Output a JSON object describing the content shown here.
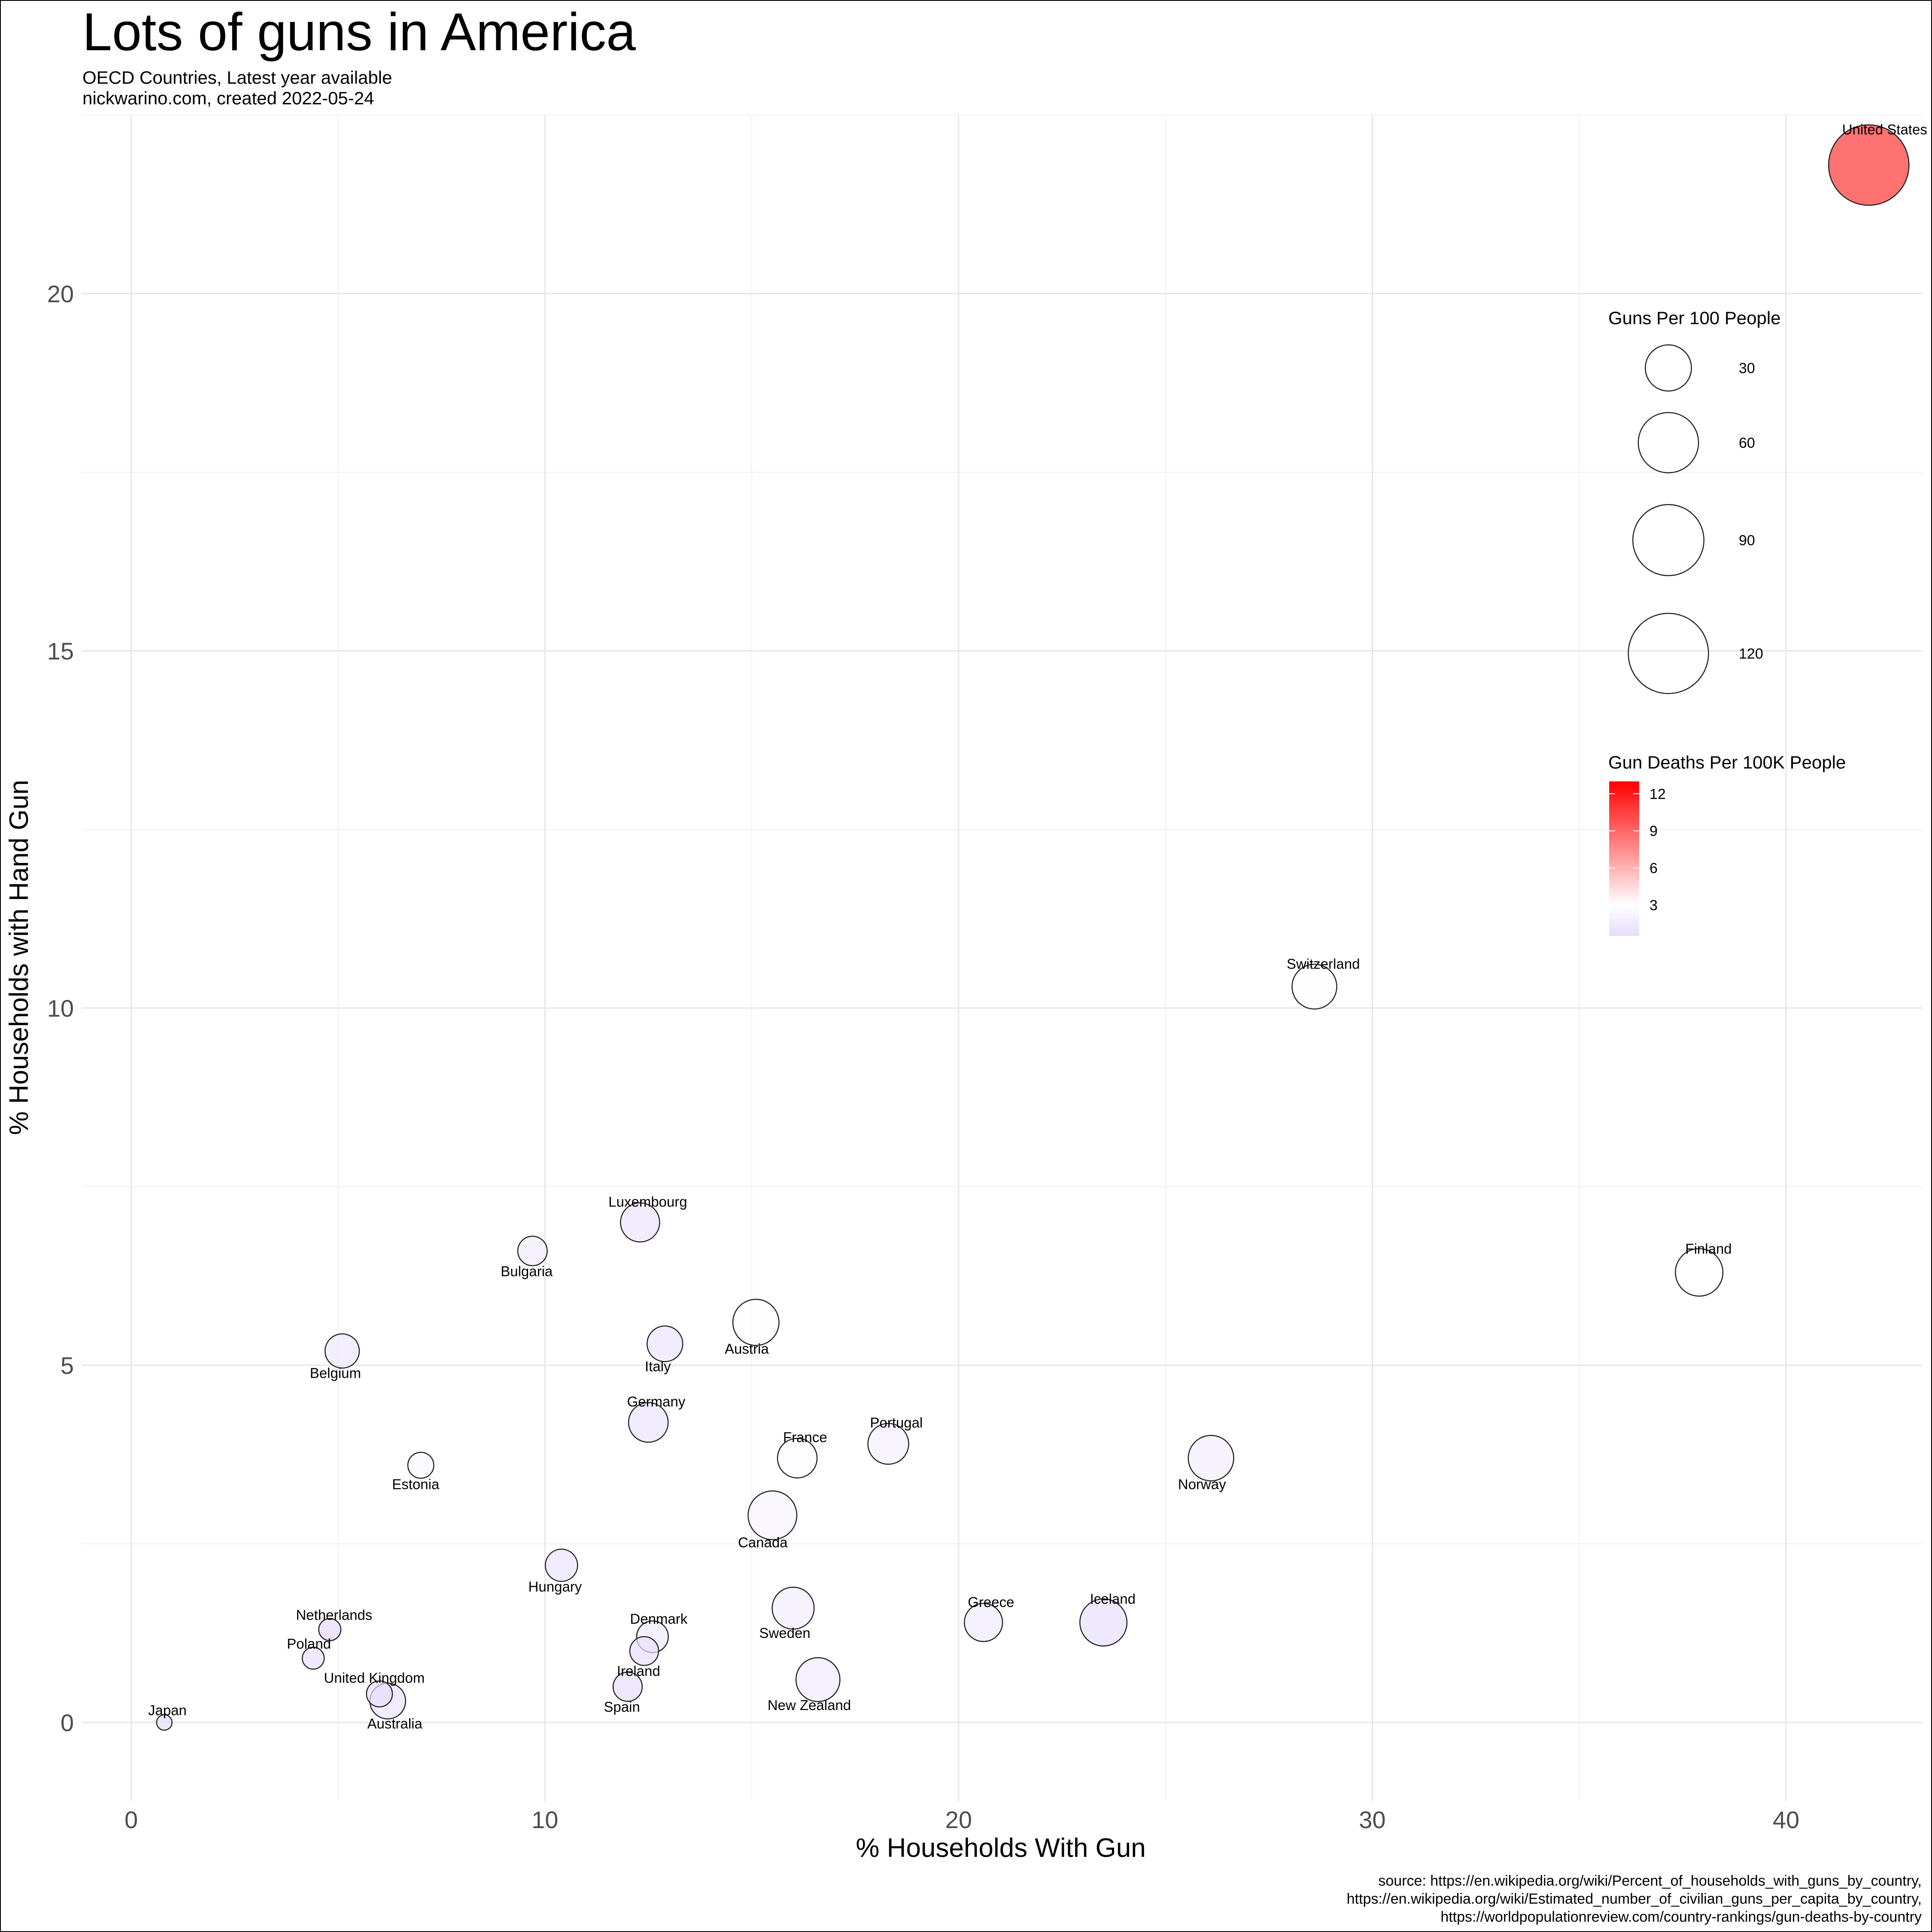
{
  "chart_data": {
    "type": "scatter",
    "title": "Lots of guns in America",
    "subtitle": "OECD Countries, Latest year available",
    "credit": "nickwarino.com, created 2022-05-24",
    "caption": [
      "source: https://en.wikipedia.org/wiki/Percent_of_households_with_guns_by_country,",
      "https://en.wikipedia.org/wiki/Estimated_number_of_civilian_guns_per_capita_by_country,",
      "https://worldpopulationreview.com/country-rankings/gun-deaths-by-country"
    ],
    "xlabel": "% Households With Gun",
    "ylabel": "% Households with Hand Gun",
    "xlim": [
      -1.2,
      43.3
    ],
    "ylim": [
      -1.1,
      22.5
    ],
    "xticks": [
      0,
      10,
      20,
      30,
      40
    ],
    "yticks": [
      0,
      5,
      10,
      15,
      20
    ],
    "grid": true,
    "size_legend": {
      "title": "Guns Per 100 People",
      "values": [
        30,
        60,
        90,
        120
      ],
      "labels": [
        "30",
        "60",
        "90",
        "120"
      ]
    },
    "color_legend": {
      "title": "Gun Deaths Per 100K People",
      "min": 0.5,
      "max": 13,
      "ticks": [
        3,
        6,
        9,
        12
      ],
      "labels": [
        "3",
        "6",
        "9",
        "12"
      ],
      "colors": [
        "#e6dcfc",
        "#ffffff",
        "#ff0000"
      ],
      "mid": 3
    },
    "points": [
      {
        "country": "United States",
        "x": 42.0,
        "y": 21.8,
        "guns_per_100": 120.5,
        "deaths_per_100k": 10.9,
        "label_pos": "top-right"
      },
      {
        "country": "Switzerland",
        "x": 28.6,
        "y": 10.3,
        "guns_per_100": 27.6,
        "deaths_per_100k": 2.8,
        "label_pos": "top-right"
      },
      {
        "country": "Finland",
        "x": 37.9,
        "y": 6.3,
        "guns_per_100": 32.4,
        "deaths_per_100k": 3.0,
        "label_pos": "top-right"
      },
      {
        "country": "Luxembourg",
        "x": 12.3,
        "y": 7.0,
        "guns_per_100": 18.9,
        "deaths_per_100k": 1.1,
        "label_pos": "top-right"
      },
      {
        "country": "Bulgaria",
        "x": 9.7,
        "y": 6.6,
        "guns_per_100": 7.8,
        "deaths_per_100k": 1.6,
        "label_pos": "bottom-left"
      },
      {
        "country": "Belgium",
        "x": 5.1,
        "y": 5.2,
        "guns_per_100": 12.7,
        "deaths_per_100k": 1.3,
        "label_pos": "bottom-left"
      },
      {
        "country": "Austria",
        "x": 15.1,
        "y": 5.6,
        "guns_per_100": 30.0,
        "deaths_per_100k": 2.9,
        "label_pos": "bottom-left"
      },
      {
        "country": "Italy",
        "x": 12.9,
        "y": 5.3,
        "guns_per_100": 14.4,
        "deaths_per_100k": 1.2,
        "label_pos": "bottom-left"
      },
      {
        "country": "Germany",
        "x": 12.5,
        "y": 4.2,
        "guns_per_100": 19.6,
        "deaths_per_100k": 1.0,
        "label_pos": "top-right"
      },
      {
        "country": "Estonia",
        "x": 7.0,
        "y": 3.6,
        "guns_per_100": 5.0,
        "deaths_per_100k": 2.6,
        "label_pos": "bottom-left"
      },
      {
        "country": "France",
        "x": 16.1,
        "y": 3.7,
        "guns_per_100": 19.6,
        "deaths_per_100k": 2.7,
        "label_pos": "top-right"
      },
      {
        "country": "Portugal",
        "x": 18.3,
        "y": 3.9,
        "guns_per_100": 21.3,
        "deaths_per_100k": 1.9,
        "label_pos": "top-right"
      },
      {
        "country": "Norway",
        "x": 26.1,
        "y": 3.7,
        "guns_per_100": 28.8,
        "deaths_per_100k": 1.8,
        "label_pos": "bottom-left"
      },
      {
        "country": "Canada",
        "x": 15.5,
        "y": 2.9,
        "guns_per_100": 34.7,
        "deaths_per_100k": 2.1,
        "label_pos": "bottom-left"
      },
      {
        "country": "Hungary",
        "x": 10.4,
        "y": 2.2,
        "guns_per_100": 10.5,
        "deaths_per_100k": 0.9,
        "label_pos": "bottom-left"
      },
      {
        "country": "Netherlands",
        "x": 4.8,
        "y": 1.3,
        "guns_per_100": 2.6,
        "deaths_per_100k": 0.5,
        "label_pos": "top-right"
      },
      {
        "country": "Poland",
        "x": 4.4,
        "y": 0.9,
        "guns_per_100": 2.5,
        "deaths_per_100k": 0.7,
        "label_pos": "top-left"
      },
      {
        "country": "Denmark",
        "x": 12.6,
        "y": 1.2,
        "guns_per_100": 9.9,
        "deaths_per_100k": 1.4,
        "label_pos": "top-right"
      },
      {
        "country": "Ireland",
        "x": 12.4,
        "y": 1.0,
        "guns_per_100": 7.2,
        "deaths_per_100k": 0.8,
        "label_pos": "bottom-left"
      },
      {
        "country": "Sweden",
        "x": 16.0,
        "y": 1.6,
        "guns_per_100": 23.1,
        "deaths_per_100k": 1.8,
        "label_pos": "bottom-left"
      },
      {
        "country": "Greece",
        "x": 20.6,
        "y": 1.4,
        "guns_per_100": 17.6,
        "deaths_per_100k": 1.4,
        "label_pos": "top-right"
      },
      {
        "country": "Iceland",
        "x": 23.5,
        "y": 1.4,
        "guns_per_100": 31.7,
        "deaths_per_100k": 0.7,
        "label_pos": "top-right"
      },
      {
        "country": "United Kingdom",
        "x": 6.0,
        "y": 0.4,
        "guns_per_100": 5.0,
        "deaths_per_100k": 0.6,
        "label_pos": "top-left"
      },
      {
        "country": "Australia",
        "x": 6.2,
        "y": 0.3,
        "guns_per_100": 14.5,
        "deaths_per_100k": 0.9,
        "label_pos": "bottom-right"
      },
      {
        "country": "Spain",
        "x": 12.0,
        "y": 0.5,
        "guns_per_100": 7.5,
        "deaths_per_100k": 0.6,
        "label_pos": "bottom-left"
      },
      {
        "country": "New Zealand",
        "x": 16.6,
        "y": 0.6,
        "guns_per_100": 26.3,
        "deaths_per_100k": 1.4,
        "label_pos": "bottom-left"
      },
      {
        "country": "Japan",
        "x": 0.8,
        "y": 0.0,
        "guns_per_100": 0.3,
        "deaths_per_100k": 0.0,
        "label_pos": "top-right"
      }
    ]
  }
}
